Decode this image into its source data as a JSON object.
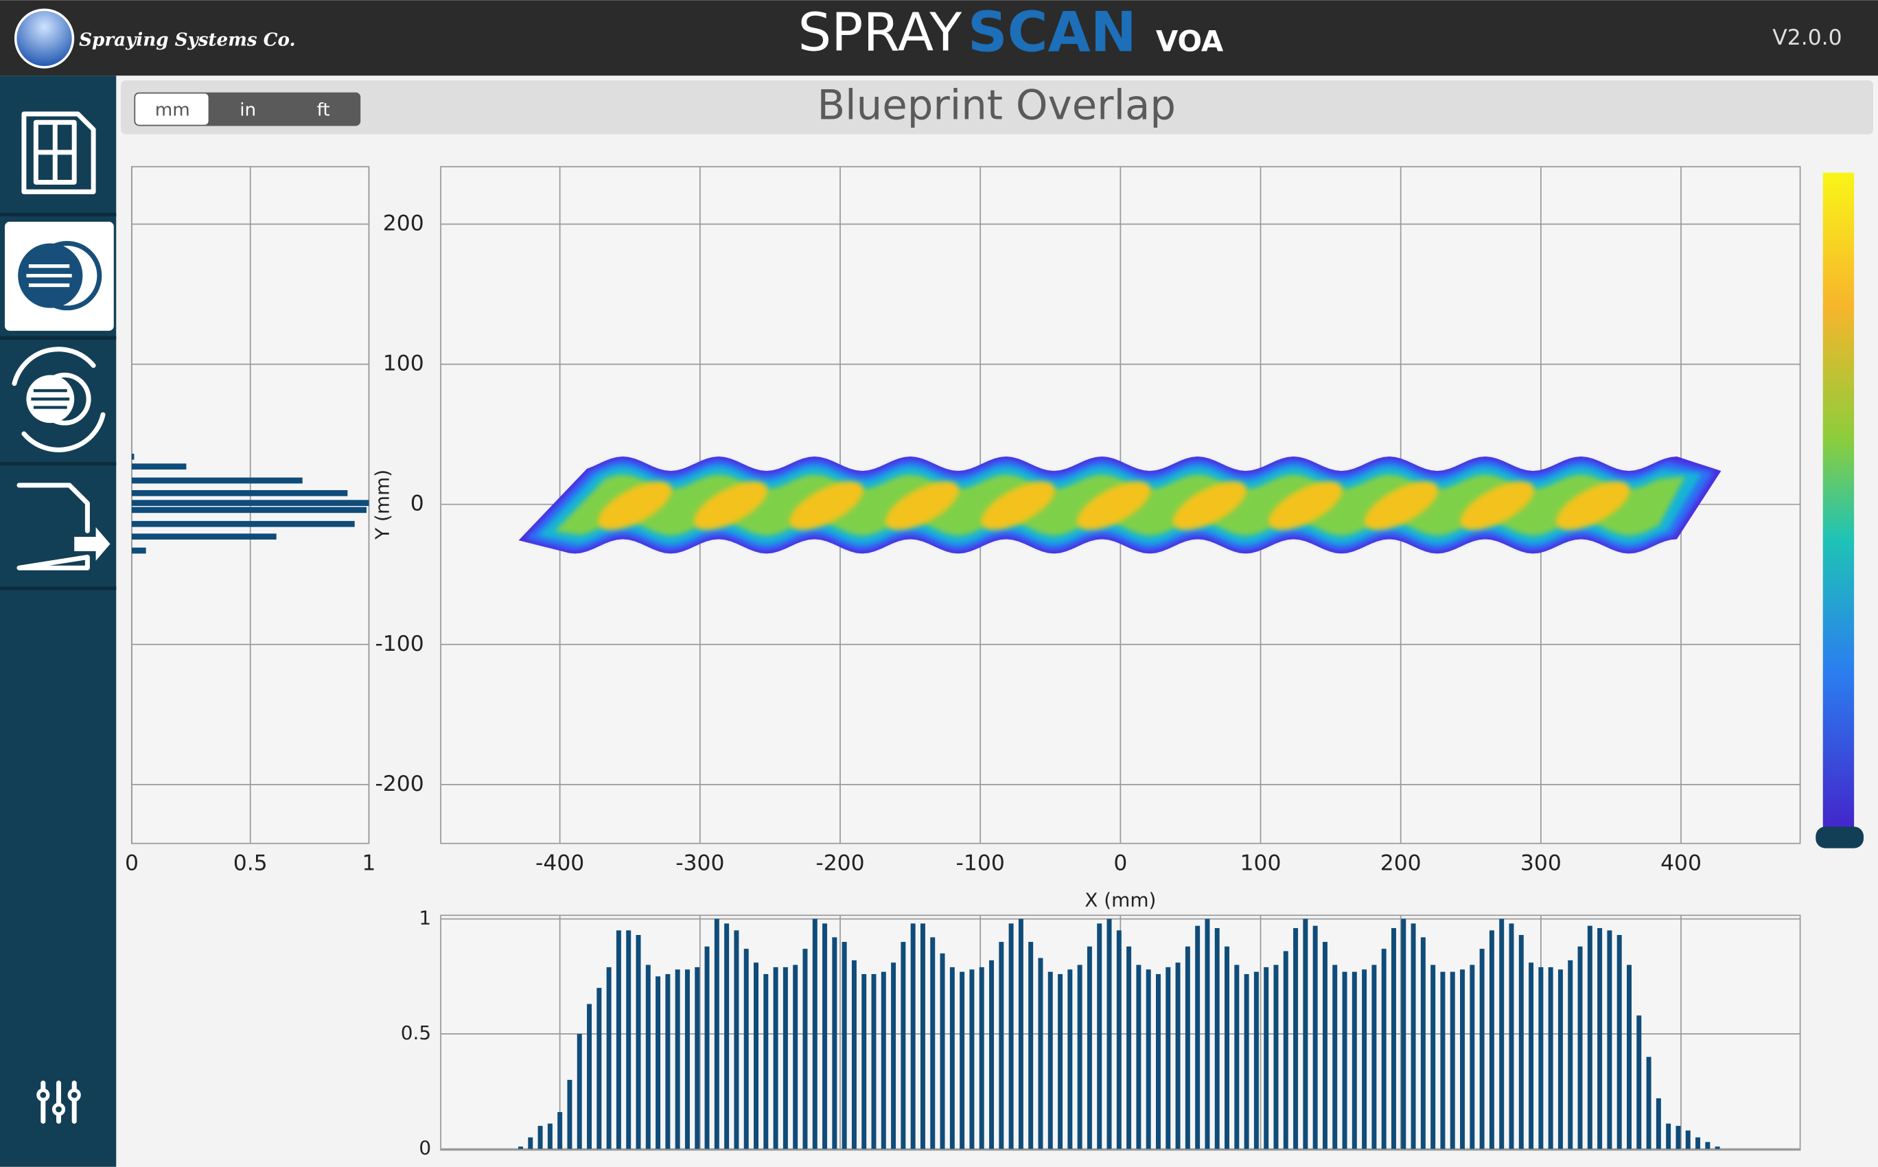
{
  "header": {
    "company": "Spraying Systems Co.",
    "product": "SPRAY",
    "product_highlight": "SCAN",
    "product_suffix": "VOA",
    "version": "V2.0.0"
  },
  "units": {
    "options": [
      "mm",
      "in",
      "ft"
    ],
    "selected": "mm"
  },
  "page_title": "Blueprint Overlap",
  "chart_data": [
    {
      "type": "heatmap",
      "xlabel": "X (mm)",
      "ylabel": "Y (mm)",
      "xlim": [
        -485,
        485
      ],
      "ylim": [
        -242,
        241
      ],
      "xticks": [
        -400,
        -300,
        -200,
        -100,
        0,
        100,
        200,
        300,
        400
      ],
      "yticks": [
        -200,
        -100,
        0,
        100,
        200
      ],
      "grid": true
    },
    {
      "type": "barh",
      "y": [
        34,
        27,
        17,
        8,
        1,
        -4,
        -14,
        -23,
        -33
      ],
      "values": [
        0.01,
        0.23,
        0.72,
        0.91,
        1.0,
        0.99,
        0.94,
        0.61,
        0.06
      ],
      "color": "#0f4c7a",
      "xlim": [
        0,
        1
      ],
      "xticks": [
        0,
        0.5,
        1
      ],
      "ylim": [
        -242,
        241
      ],
      "yticks": [
        -200,
        -100,
        0,
        100,
        200
      ],
      "grid": true
    },
    {
      "type": "bar",
      "x": [
        -428,
        -421,
        -414,
        -407,
        -400,
        -393,
        -386,
        -379,
        -372,
        -365,
        -358,
        -351,
        -344,
        -337,
        -330,
        -323,
        -316,
        -309,
        -302,
        -295,
        -288,
        -281,
        -274,
        -267,
        -260,
        -253,
        -246,
        -239,
        -232,
        -225,
        -218,
        -211,
        -204,
        -197,
        -190,
        -183,
        -176,
        -169,
        -162,
        -155,
        -148,
        -141,
        -134,
        -127,
        -120,
        -113,
        -106,
        -99,
        -92,
        -85,
        -78,
        -71,
        -64,
        -57,
        -50,
        -43,
        -36,
        -29,
        -22,
        -15,
        -8,
        -1,
        6,
        13,
        20,
        27,
        34,
        41,
        48,
        55,
        62,
        69,
        76,
        83,
        90,
        97,
        104,
        111,
        118,
        125,
        132,
        139,
        146,
        153,
        160,
        167,
        174,
        181,
        188,
        195,
        202,
        209,
        216,
        223,
        230,
        237,
        244,
        251,
        258,
        265,
        272,
        279,
        286,
        293,
        300,
        307,
        314,
        321,
        328,
        335,
        342,
        349,
        356,
        363,
        370,
        377,
        384,
        391,
        398,
        405,
        412,
        419,
        426
      ],
      "values": [
        0.01,
        0.05,
        0.1,
        0.11,
        0.16,
        0.3,
        0.5,
        0.63,
        0.7,
        0.79,
        0.95,
        0.95,
        0.93,
        0.8,
        0.75,
        0.76,
        0.78,
        0.78,
        0.79,
        0.88,
        1.0,
        0.98,
        0.95,
        0.87,
        0.81,
        0.76,
        0.79,
        0.79,
        0.8,
        0.87,
        1.0,
        0.98,
        0.92,
        0.9,
        0.82,
        0.76,
        0.76,
        0.77,
        0.81,
        0.9,
        0.98,
        0.98,
        0.92,
        0.85,
        0.79,
        0.77,
        0.78,
        0.79,
        0.82,
        0.9,
        0.98,
        1.0,
        0.9,
        0.83,
        0.77,
        0.76,
        0.78,
        0.8,
        0.88,
        0.98,
        1.0,
        0.95,
        0.88,
        0.8,
        0.78,
        0.76,
        0.79,
        0.81,
        0.88,
        0.97,
        1.0,
        0.96,
        0.88,
        0.8,
        0.76,
        0.77,
        0.79,
        0.8,
        0.86,
        0.96,
        1.0,
        0.97,
        0.9,
        0.8,
        0.77,
        0.77,
        0.78,
        0.8,
        0.87,
        0.96,
        1.0,
        0.98,
        0.92,
        0.8,
        0.77,
        0.77,
        0.78,
        0.8,
        0.87,
        0.95,
        1.0,
        0.98,
        0.93,
        0.81,
        0.79,
        0.79,
        0.78,
        0.82,
        0.88,
        0.97,
        0.96,
        0.95,
        0.93,
        0.8,
        0.58,
        0.4,
        0.22,
        0.11,
        0.1,
        0.08,
        0.05,
        0.03,
        0.01
      ],
      "color": "#0f4c7a",
      "xlim": [
        -485,
        485
      ],
      "xticks": [
        -400,
        -300,
        -200,
        -100,
        0,
        100,
        200,
        300,
        400
      ],
      "ylim": [
        0,
        1
      ],
      "yticks": [
        0,
        0.5,
        1
      ],
      "grid": true
    }
  ]
}
